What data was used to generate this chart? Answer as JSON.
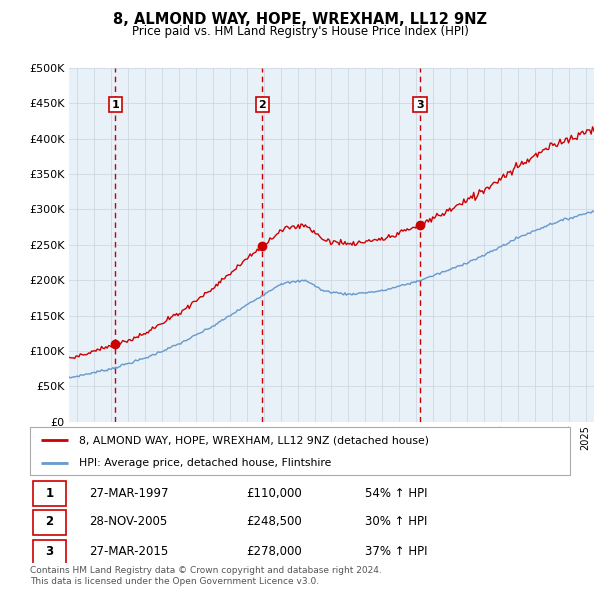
{
  "title": "8, ALMOND WAY, HOPE, WREXHAM, LL12 9NZ",
  "subtitle": "Price paid vs. HM Land Registry's House Price Index (HPI)",
  "hpi_color": "#6699cc",
  "property_color": "#cc0000",
  "vline_color": "#cc0000",
  "plot_bg": "#e8f0f8",
  "ylim": [
    0,
    500000
  ],
  "yticks": [
    0,
    50000,
    100000,
    150000,
    200000,
    250000,
    300000,
    350000,
    400000,
    450000,
    500000
  ],
  "xlim_start": 1994.5,
  "xlim_end": 2025.5,
  "sales": [
    {
      "year": 1997.23,
      "price": 110000,
      "label": "1"
    },
    {
      "year": 2005.91,
      "price": 248500,
      "label": "2"
    },
    {
      "year": 2015.23,
      "price": 278000,
      "label": "3"
    }
  ],
  "legend_property": "8, ALMOND WAY, HOPE, WREXHAM, LL12 9NZ (detached house)",
  "legend_hpi": "HPI: Average price, detached house, Flintshire",
  "table_rows": [
    {
      "num": "1",
      "date": "27-MAR-1997",
      "price": "£110,000",
      "hpi": "54% ↑ HPI"
    },
    {
      "num": "2",
      "date": "28-NOV-2005",
      "price": "£248,500",
      "hpi": "30% ↑ HPI"
    },
    {
      "num": "3",
      "date": "27-MAR-2015",
      "price": "£278,000",
      "hpi": "37% ↑ HPI"
    }
  ],
  "footnote": "Contains HM Land Registry data © Crown copyright and database right 2024.\nThis data is licensed under the Open Government Licence v3.0."
}
